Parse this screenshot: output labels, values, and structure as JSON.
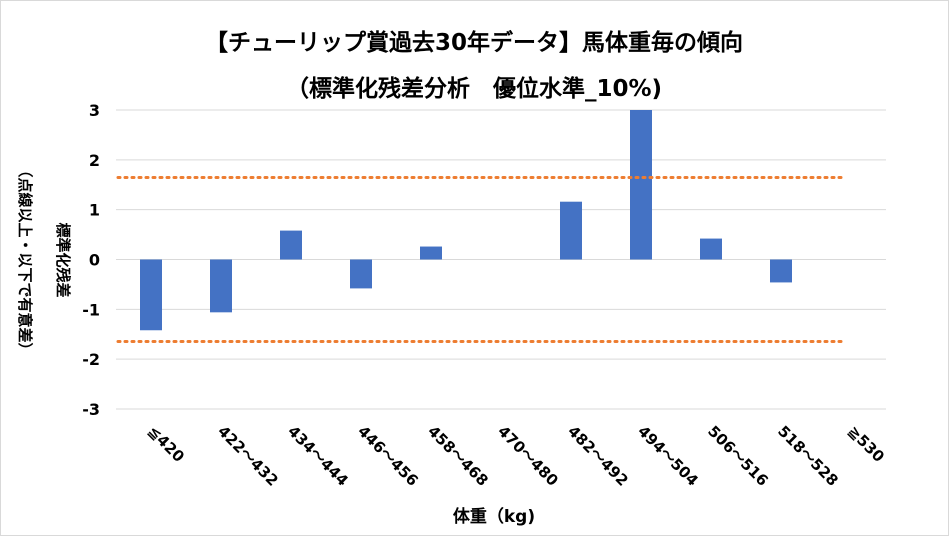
{
  "chart_data": {
    "type": "bar",
    "title": "【チューリップ賞過去30年データ】馬体重毎の傾向",
    "subtitle": "（標準化残差分析　優位水準_10%)",
    "xlabel": "体重（kg)",
    "ylabel": "標準化残差",
    "ylabel_note": "（点線以上・以下で有意差）",
    "categories": [
      "≦420",
      "422～432",
      "434～444",
      "446～456",
      "458～468",
      "470～480",
      "482～492",
      "494～504",
      "506～516",
      "518～528",
      "≧530"
    ],
    "values": [
      -1.42,
      -1.06,
      0.58,
      -0.58,
      0.26,
      0,
      1.16,
      3.0,
      0.42,
      -0.46,
      0
    ],
    "ylim": [
      -3,
      3
    ],
    "yticks": [
      3,
      2,
      1,
      0,
      -1,
      -2,
      -3
    ],
    "threshold_lines": [
      1.645,
      -1.645
    ],
    "grid": true,
    "legend": "none",
    "colors": {
      "bar": "#4472c4",
      "threshold": "#ed7d31",
      "grid": "#d9d9d9"
    }
  }
}
